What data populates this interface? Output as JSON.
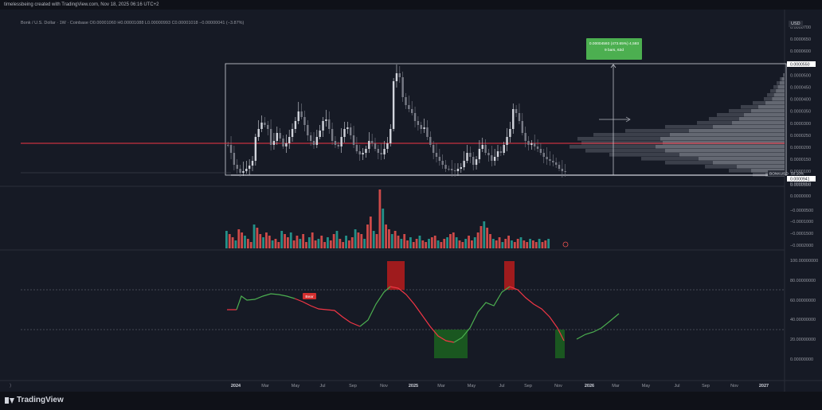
{
  "header": {
    "title": "timelessbeing created with TradingView.com, Nov 18, 2025 06:16 UTC+2"
  },
  "legend": {
    "text": "Bonk / U.S. Dollar · 1W · Coinbase  O0.00001060  H0.00001088  L0.00000993  C0.00001018  −0.00000041 (−3.87%)"
  },
  "currency": "USD",
  "price_axis": {
    "ticks": [
      "0.0000700",
      "0.0000650",
      "0.0000600",
      "0.0000550",
      "0.0000500",
      "0.0000450",
      "0.0000400",
      "0.0000350",
      "0.0000300",
      "0.0000250",
      "0.0000200",
      "0.0000150",
      "0.0000100",
      "0.0000050"
    ],
    "price_tag_top": "0.0000550",
    "price_tag_bottom": "0.0000941",
    "bonk_tag": "BONKUSD",
    "bonk_val": "50.10%"
  },
  "measure_box": {
    "line1": "0.00004593 (473.65%) 4,593",
    "line2": "9 bars, 63d"
  },
  "volume_axis": {
    "ticks": [
      "0.0000500",
      "0.0000000",
      "−0.0000500",
      "−0.0001000",
      "−0.0001500",
      "−0.0002000"
    ]
  },
  "osc_axis": {
    "ticks": [
      "100.00000000",
      "80.00000000",
      "60.00000000",
      "40.00000000",
      "20.00000000",
      "0.00000000"
    ]
  },
  "bear_label": "Bear",
  "time_axis": [
    {
      "label": "2024",
      "bold": true
    },
    {
      "label": "Mar",
      "bold": false
    },
    {
      "label": "May",
      "bold": false
    },
    {
      "label": "Jul",
      "bold": false
    },
    {
      "label": "Sep",
      "bold": false
    },
    {
      "label": "Nov",
      "bold": false
    },
    {
      "label": "2025",
      "bold": true
    },
    {
      "label": "Mar",
      "bold": false
    },
    {
      "label": "May",
      "bold": false
    },
    {
      "label": "Jul",
      "bold": false
    },
    {
      "label": "Sep",
      "bold": false
    },
    {
      "label": "Nov",
      "bold": false
    },
    {
      "label": "2026",
      "bold": true
    },
    {
      "label": "Mar",
      "bold": false
    },
    {
      "label": "May",
      "bold": false
    },
    {
      "label": "Jul",
      "bold": false
    },
    {
      "label": "Sep",
      "bold": false
    },
    {
      "label": "Nov",
      "bold": false
    },
    {
      "label": "2027",
      "bold": true
    }
  ],
  "footer": {
    "brand": "TradingView"
  },
  "colors": {
    "bg": "#161a25",
    "up": "#26a69a",
    "down": "#ef5350",
    "red_line": "#f23645",
    "green_box": "#4caf50"
  }
}
